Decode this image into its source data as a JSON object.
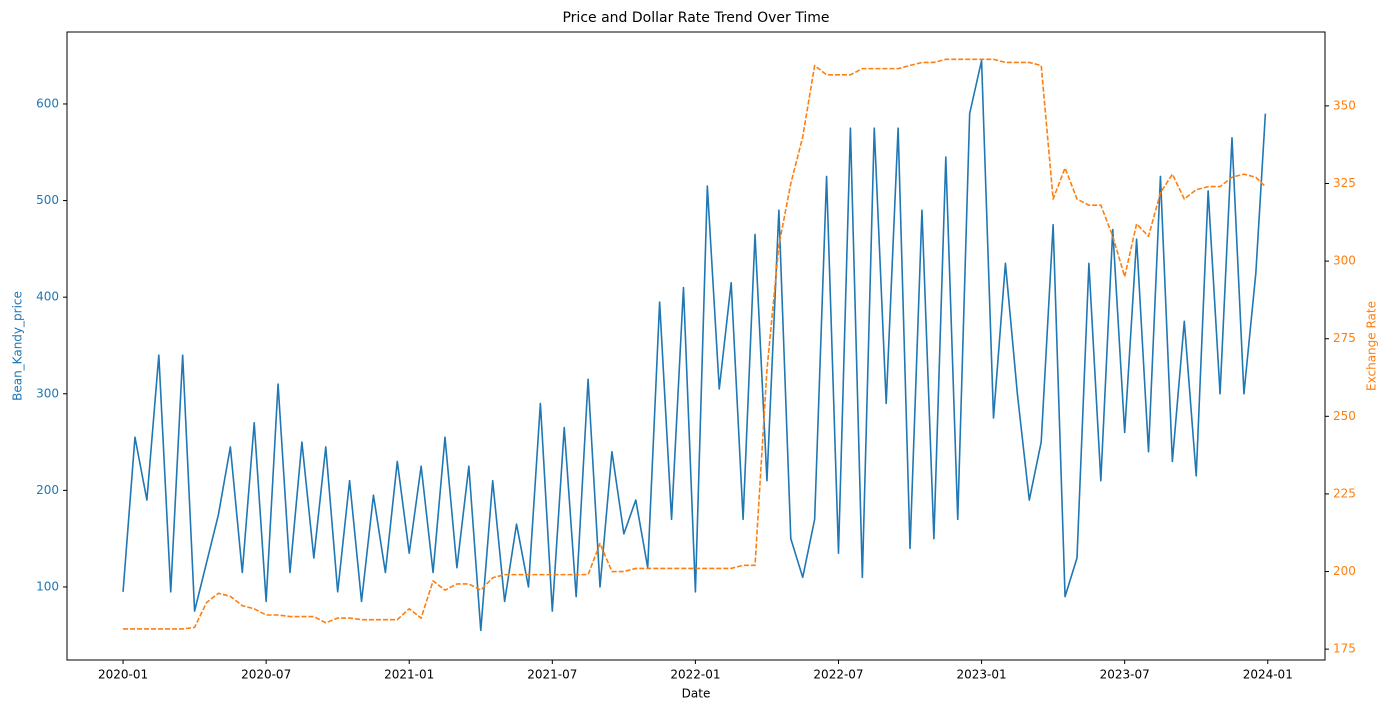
{
  "chart_data": {
    "type": "line",
    "title": "Price and Dollar Rate Trend Over Time",
    "xlabel": "Date",
    "ylabel": "Bean_Kandy_price",
    "y2label": "Exchange Rate",
    "x": [
      0,
      0.5,
      1,
      1.5,
      2,
      2.5,
      3,
      3.5,
      4,
      4.5,
      5,
      5.5,
      6,
      6.5,
      7,
      7.5,
      8,
      8.5,
      9,
      9.5,
      10,
      10.5,
      11,
      11.5,
      12,
      12.5,
      13,
      13.5,
      14,
      14.5,
      15,
      15.5,
      16,
      16.5,
      17,
      17.5,
      18,
      18.5,
      19,
      19.5,
      20,
      20.5,
      21,
      21.5,
      22,
      22.5,
      23,
      23.5,
      24,
      24.5,
      25,
      25.5,
      26,
      26.5,
      27,
      27.5,
      28,
      28.5,
      29,
      29.5,
      30,
      30.5,
      31,
      31.5,
      32,
      32.5,
      33,
      33.5,
      34,
      34.5,
      35,
      35.5,
      36,
      36.5,
      37,
      37.5,
      38,
      38.5,
      39,
      39.5,
      40,
      40.5,
      41,
      41.5,
      42,
      42.5,
      43,
      43.5,
      44,
      44.5,
      45,
      45.5,
      46,
      46.5,
      47,
      47.5,
      47.9
    ],
    "series": [
      {
        "color": "#1f77b4",
        "axis": "y",
        "dash": false,
        "values": [
          95,
          255,
          190,
          340,
          95,
          340,
          75,
          125,
          175,
          245,
          115,
          270,
          85,
          310,
          115,
          250,
          130,
          245,
          95,
          210,
          85,
          195,
          115,
          230,
          135,
          225,
          115,
          255,
          120,
          225,
          55,
          210,
          85,
          165,
          100,
          290,
          75,
          265,
          90,
          315,
          100,
          240,
          155,
          190,
          120,
          395,
          170,
          410,
          95,
          515,
          305,
          415,
          170,
          465,
          210,
          490,
          150,
          110,
          170,
          525,
          135,
          575,
          110,
          575,
          290,
          575,
          140,
          490,
          150,
          545,
          170,
          590,
          645,
          275,
          435,
          300,
          190,
          250,
          475,
          90,
          130,
          435,
          210,
          470,
          260,
          460,
          240,
          525,
          230,
          375,
          215,
          510,
          300,
          565,
          300,
          425,
          590
        ]
      },
      {
        "color": "#ff7f0e",
        "axis": "y2",
        "dash": true,
        "values": [
          181.5,
          181.5,
          181.5,
          181.5,
          181.5,
          181.5,
          182,
          190,
          193,
          192,
          189,
          188,
          186,
          186,
          185.5,
          185.5,
          185.5,
          183.5,
          185,
          185,
          184.5,
          184.5,
          184.5,
          184.5,
          188,
          185,
          197,
          194,
          196,
          196,
          194,
          198,
          199,
          199,
          199,
          199,
          199,
          199,
          199,
          199,
          209,
          200,
          200,
          201,
          201,
          201,
          201,
          201,
          201,
          201,
          201,
          201,
          202,
          202,
          265,
          305,
          325,
          340,
          363,
          360,
          360,
          360,
          362,
          362,
          362,
          362,
          363,
          364,
          364,
          365,
          365,
          365,
          365,
          365,
          364,
          364,
          364,
          363,
          320,
          330,
          320,
          318,
          318,
          308,
          295,
          312,
          308,
          322,
          328,
          320,
          323,
          324,
          324,
          327,
          328,
          327,
          324
        ]
      }
    ],
    "xlim": [
      -2.35,
      50.4
    ],
    "xticks": [
      {
        "value": 0,
        "label": "2020-01"
      },
      {
        "value": 6,
        "label": "2020-07"
      },
      {
        "value": 12,
        "label": "2021-01"
      },
      {
        "value": 18,
        "label": "2021-07"
      },
      {
        "value": 24,
        "label": "2022-01"
      },
      {
        "value": 30,
        "label": "2022-07"
      },
      {
        "value": 36,
        "label": "2023-01"
      },
      {
        "value": 42,
        "label": "2023-07"
      },
      {
        "value": 48,
        "label": "2024-01"
      }
    ],
    "ylim": [
      24.4,
      674.5
    ],
    "yticks": [
      100,
      200,
      300,
      400,
      500,
      600
    ],
    "y2lim": [
      171.5,
      373.8
    ],
    "y2ticks": [
      175,
      200,
      225,
      250,
      275,
      300,
      325,
      350
    ]
  }
}
